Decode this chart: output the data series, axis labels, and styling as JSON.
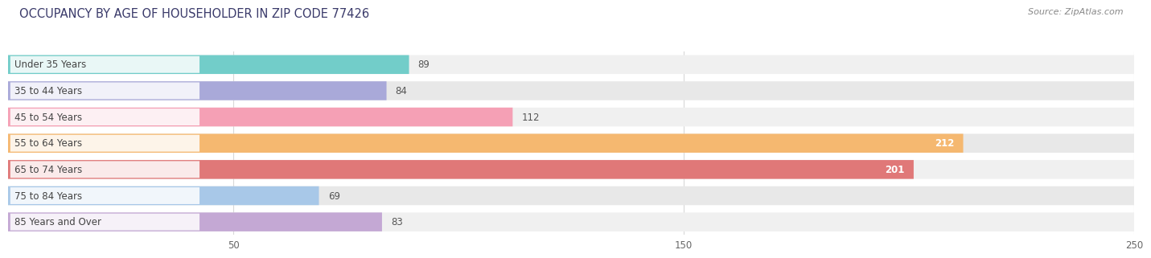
{
  "title": "OCCUPANCY BY AGE OF HOUSEHOLDER IN ZIP CODE 77426",
  "source": "Source: ZipAtlas.com",
  "categories": [
    "Under 35 Years",
    "35 to 44 Years",
    "45 to 54 Years",
    "55 to 64 Years",
    "65 to 74 Years",
    "75 to 84 Years",
    "85 Years and Over"
  ],
  "values": [
    89,
    84,
    112,
    212,
    201,
    69,
    83
  ],
  "bar_colors": [
    "#72cdc9",
    "#a9a9d9",
    "#f5a0b5",
    "#f5b870",
    "#e07878",
    "#a8c8e8",
    "#c4a8d4"
  ],
  "xlim_min": 0,
  "xlim_max": 250,
  "xticks": [
    50,
    150,
    250
  ],
  "title_fontsize": 10.5,
  "source_fontsize": 8,
  "label_fontsize": 8.5,
  "value_fontsize": 8.5,
  "background_color": "#ffffff",
  "row_colors": [
    "#f0f0f0",
    "#e8e8e8"
  ],
  "title_color": "#3a3a6a",
  "source_color": "#888888",
  "grid_color": "#d8d8d8",
  "label_bg": "#ffffff",
  "bar_bg_color": "#e8e8e8"
}
